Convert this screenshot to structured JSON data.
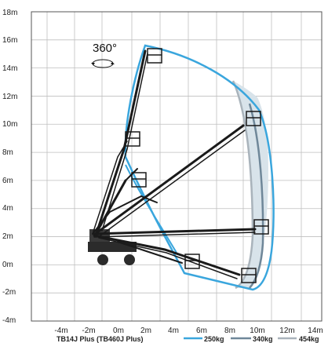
{
  "diagram": {
    "model": "TB14J Plus (TB460J Plus)",
    "rotation_label": "360°",
    "x_ticks": [
      "-4m",
      "-2m",
      "0m",
      "2m",
      "4m",
      "6m",
      "8m",
      "10m",
      "12m",
      "14m"
    ],
    "y_ticks": [
      "18m",
      "16m",
      "14m",
      "12m",
      "10m",
      "8m",
      "6m",
      "4m",
      "2m",
      "0m",
      "-2m",
      "-4m"
    ],
    "legend": [
      {
        "label": "250kg",
        "color": "#3aa6dd"
      },
      {
        "label": "340kg",
        "color": "#6f8799"
      },
      {
        "label": "454kg",
        "color": "#a9b3bb"
      }
    ],
    "colors": {
      "grid": "#bfbfbf",
      "axis": "#555555",
      "machine": "#1a1a1a",
      "envelope_250": "#3aa6dd",
      "envelope_340": "#6f8799",
      "envelope_454": "#a9b3bb",
      "zone_fill": "#d8e3ea"
    }
  }
}
